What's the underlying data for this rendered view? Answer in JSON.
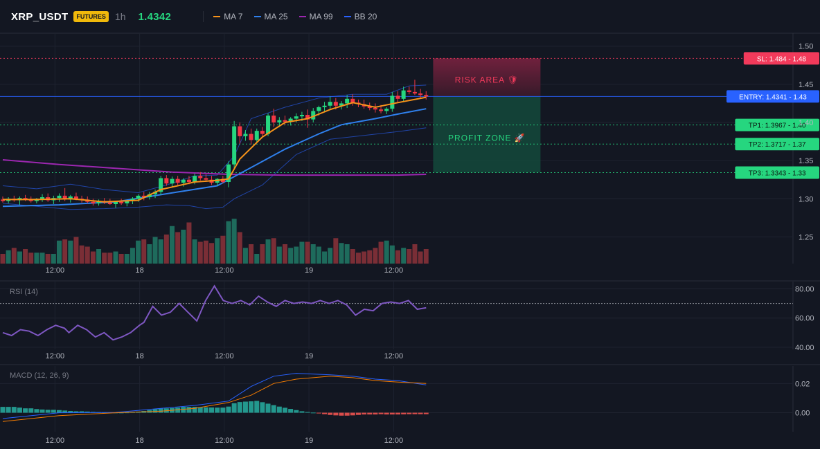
{
  "header": {
    "symbol": "XRP_USDT",
    "badge": "FUTURES",
    "interval": "1h",
    "last_price": "1.4342",
    "indicators": [
      {
        "label": "MA 7",
        "color": "#f7931a"
      },
      {
        "label": "MA 25",
        "color": "#2f80ed"
      },
      {
        "label": "MA 99",
        "color": "#9c27b0"
      },
      {
        "label": "BB 20",
        "color": "#2962ff"
      }
    ]
  },
  "colors": {
    "background": "#131722",
    "up": "#26d67f",
    "down": "#f23645",
    "volume_up": "#1e6b5c",
    "volume_down": "#7a2e36",
    "ma7": "#f7931a",
    "ma25": "#2f80ed",
    "ma99": "#9c27b0",
    "bb": "#2962ff",
    "rsi": "#7e57c2",
    "macd": "#2962ff",
    "signal": "#f57c00",
    "hist_up": "#26a69a",
    "hist_down": "#ef5350",
    "entry": "#2962ff",
    "sl": "#f23a5b",
    "tp": "#26d67f"
  },
  "chart_data": [
    {
      "type": "candlestick",
      "name": "price",
      "x_ticks": [
        "12:00",
        "18",
        "12:00",
        "19",
        "12:00"
      ],
      "x_tick_index": [
        9,
        24,
        39,
        54,
        69
      ],
      "y_ticks": [
        "1.50",
        "1.45",
        "1.40",
        "1.35",
        "1.30",
        "1.25"
      ],
      "y_tick_values": [
        1.5,
        1.45,
        1.4,
        1.35,
        1.3,
        1.25
      ],
      "ylim": [
        1.215,
        1.517
      ],
      "candles": [
        [
          1.299,
          1.303,
          1.295,
          1.297
        ],
        [
          1.297,
          1.302,
          1.294,
          1.3
        ],
        [
          1.3,
          1.304,
          1.296,
          1.298
        ],
        [
          1.298,
          1.303,
          1.292,
          1.301
        ],
        [
          1.301,
          1.305,
          1.297,
          1.299
        ],
        [
          1.299,
          1.303,
          1.295,
          1.297
        ],
        [
          1.297,
          1.301,
          1.294,
          1.3
        ],
        [
          1.3,
          1.306,
          1.296,
          1.302
        ],
        [
          1.302,
          1.307,
          1.296,
          1.298
        ],
        [
          1.298,
          1.304,
          1.293,
          1.301
        ],
        [
          1.301,
          1.307,
          1.296,
          1.304
        ],
        [
          1.304,
          1.314,
          1.297,
          1.299
        ],
        [
          1.299,
          1.305,
          1.295,
          1.303
        ],
        [
          1.303,
          1.308,
          1.298,
          1.3
        ],
        [
          1.3,
          1.304,
          1.295,
          1.299
        ],
        [
          1.299,
          1.303,
          1.294,
          1.296
        ],
        [
          1.296,
          1.3,
          1.291,
          1.294
        ],
        [
          1.294,
          1.299,
          1.291,
          1.297
        ],
        [
          1.297,
          1.301,
          1.293,
          1.295
        ],
        [
          1.295,
          1.3,
          1.292,
          1.293
        ],
        [
          1.293,
          1.297,
          1.288,
          1.296
        ],
        [
          1.296,
          1.3,
          1.292,
          1.294
        ],
        [
          1.294,
          1.298,
          1.29,
          1.297
        ],
        [
          1.297,
          1.302,
          1.293,
          1.3
        ],
        [
          1.3,
          1.306,
          1.296,
          1.304
        ],
        [
          1.304,
          1.309,
          1.298,
          1.302
        ],
        [
          1.302,
          1.309,
          1.299,
          1.306
        ],
        [
          1.306,
          1.312,
          1.301,
          1.309
        ],
        [
          1.309,
          1.33,
          1.305,
          1.327
        ],
        [
          1.327,
          1.331,
          1.317,
          1.32
        ],
        [
          1.32,
          1.329,
          1.316,
          1.326
        ],
        [
          1.326,
          1.33,
          1.318,
          1.321
        ],
        [
          1.321,
          1.327,
          1.316,
          1.325
        ],
        [
          1.325,
          1.33,
          1.319,
          1.322
        ],
        [
          1.322,
          1.333,
          1.319,
          1.33
        ],
        [
          1.33,
          1.335,
          1.324,
          1.327
        ],
        [
          1.327,
          1.332,
          1.322,
          1.325
        ],
        [
          1.325,
          1.33,
          1.318,
          1.321
        ],
        [
          1.321,
          1.327,
          1.317,
          1.326
        ],
        [
          1.326,
          1.33,
          1.32,
          1.322
        ],
        [
          1.322,
          1.349,
          1.315,
          1.345
        ],
        [
          1.345,
          1.402,
          1.34,
          1.395
        ],
        [
          1.395,
          1.4,
          1.372,
          1.382
        ],
        [
          1.382,
          1.39,
          1.376,
          1.385
        ],
        [
          1.385,
          1.392,
          1.371,
          1.377
        ],
        [
          1.377,
          1.392,
          1.374,
          1.389
        ],
        [
          1.389,
          1.394,
          1.382,
          1.385
        ],
        [
          1.385,
          1.412,
          1.382,
          1.409
        ],
        [
          1.409,
          1.418,
          1.394,
          1.4
        ],
        [
          1.4,
          1.407,
          1.394,
          1.403
        ],
        [
          1.403,
          1.409,
          1.397,
          1.401
        ],
        [
          1.401,
          1.407,
          1.396,
          1.405
        ],
        [
          1.405,
          1.412,
          1.4,
          1.408
        ],
        [
          1.408,
          1.414,
          1.402,
          1.41
        ],
        [
          1.41,
          1.417,
          1.393,
          1.404
        ],
        [
          1.404,
          1.419,
          1.4,
          1.415
        ],
        [
          1.415,
          1.422,
          1.409,
          1.42
        ],
        [
          1.42,
          1.427,
          1.414,
          1.422
        ],
        [
          1.422,
          1.434,
          1.418,
          1.427
        ],
        [
          1.427,
          1.432,
          1.417,
          1.422
        ],
        [
          1.422,
          1.428,
          1.417,
          1.425
        ],
        [
          1.425,
          1.436,
          1.419,
          1.431
        ],
        [
          1.431,
          1.437,
          1.422,
          1.426
        ],
        [
          1.426,
          1.43,
          1.42,
          1.424
        ],
        [
          1.424,
          1.43,
          1.418,
          1.421
        ],
        [
          1.421,
          1.426,
          1.416,
          1.419
        ],
        [
          1.419,
          1.425,
          1.413,
          1.417
        ],
        [
          1.417,
          1.423,
          1.412,
          1.415
        ],
        [
          1.415,
          1.42,
          1.411,
          1.418
        ],
        [
          1.418,
          1.44,
          1.414,
          1.435
        ],
        [
          1.435,
          1.441,
          1.426,
          1.431
        ],
        [
          1.431,
          1.447,
          1.427,
          1.442
        ],
        [
          1.442,
          1.447,
          1.437,
          1.44
        ],
        [
          1.44,
          1.456,
          1.436,
          1.438
        ],
        [
          1.438,
          1.444,
          1.432,
          1.436
        ],
        [
          1.436,
          1.441,
          1.43,
          1.434
        ]
      ],
      "volume": [
        8,
        11,
        13,
        10,
        12,
        9,
        9,
        9,
        8,
        8,
        19,
        20,
        19,
        22,
        15,
        14,
        10,
        12,
        9,
        9,
        10,
        8,
        8,
        13,
        19,
        20,
        16,
        22,
        20,
        24,
        31,
        26,
        28,
        34,
        20,
        18,
        19,
        17,
        21,
        23,
        35,
        37,
        26,
        13,
        16,
        8,
        16,
        20,
        21,
        14,
        16,
        13,
        14,
        18,
        18,
        16,
        14,
        10,
        13,
        21,
        17,
        16,
        12,
        9,
        10,
        11,
        13,
        18,
        19,
        15,
        11,
        13,
        12,
        16,
        10,
        12
      ],
      "bb_upper_pts": [
        [
          0,
          1.317
        ],
        [
          6,
          1.313
        ],
        [
          12,
          1.319
        ],
        [
          18,
          1.312
        ],
        [
          24,
          1.308
        ],
        [
          29,
          1.318
        ],
        [
          34,
          1.33
        ],
        [
          38,
          1.331
        ],
        [
          41,
          1.356
        ],
        [
          44,
          1.405
        ],
        [
          50,
          1.42
        ],
        [
          56,
          1.432
        ],
        [
          62,
          1.437
        ],
        [
          68,
          1.437
        ],
        [
          72,
          1.448
        ],
        [
          75,
          1.449
        ]
      ],
      "bb_lower_pts": [
        [
          0,
          1.294
        ],
        [
          6,
          1.29
        ],
        [
          12,
          1.286
        ],
        [
          18,
          1.287
        ],
        [
          24,
          1.289
        ],
        [
          29,
          1.292
        ],
        [
          33,
          1.291
        ],
        [
          36,
          1.287
        ],
        [
          39,
          1.289
        ],
        [
          41,
          1.3
        ],
        [
          46,
          1.318
        ],
        [
          52,
          1.358
        ],
        [
          58,
          1.378
        ],
        [
          64,
          1.383
        ],
        [
          70,
          1.388
        ],
        [
          75,
          1.393
        ]
      ],
      "ma7_pts": [
        [
          0,
          1.299
        ],
        [
          6,
          1.299
        ],
        [
          12,
          1.3
        ],
        [
          18,
          1.296
        ],
        [
          24,
          1.298
        ],
        [
          28,
          1.312
        ],
        [
          34,
          1.322
        ],
        [
          38,
          1.324
        ],
        [
          40,
          1.326
        ],
        [
          42,
          1.352
        ],
        [
          46,
          1.381
        ],
        [
          50,
          1.4
        ],
        [
          54,
          1.405
        ],
        [
          58,
          1.417
        ],
        [
          62,
          1.426
        ],
        [
          66,
          1.42
        ],
        [
          70,
          1.426
        ],
        [
          75,
          1.433
        ]
      ],
      "ma25_pts": [
        [
          0,
          1.29
        ],
        [
          10,
          1.292
        ],
        [
          20,
          1.296
        ],
        [
          26,
          1.303
        ],
        [
          32,
          1.31
        ],
        [
          38,
          1.317
        ],
        [
          44,
          1.341
        ],
        [
          50,
          1.365
        ],
        [
          56,
          1.385
        ],
        [
          60,
          1.397
        ],
        [
          66,
          1.405
        ],
        [
          70,
          1.411
        ],
        [
          75,
          1.418
        ]
      ],
      "ma99_pts": [
        [
          0,
          1.351
        ],
        [
          10,
          1.345
        ],
        [
          20,
          1.34
        ],
        [
          30,
          1.335
        ],
        [
          40,
          1.332
        ],
        [
          50,
          1.331
        ],
        [
          60,
          1.331
        ],
        [
          70,
          1.331
        ],
        [
          75,
          1.332
        ]
      ],
      "levels": [
        {
          "label": "SL: 1.484 - 1.48",
          "value": 1.484,
          "kind": "sl"
        },
        {
          "label": "ENTRY: 1.4341 - 1.43",
          "value": 1.4341,
          "kind": "entry"
        },
        {
          "label": "TP1: 1.3967 - 1.40",
          "value": 1.3967,
          "kind": "tp"
        },
        {
          "label": "TP2: 1.3717 - 1.37",
          "value": 1.3717,
          "kind": "tp"
        },
        {
          "label": "TP3: 1.3343 - 1.33",
          "value": 1.3343,
          "kind": "tp"
        }
      ],
      "zones": [
        {
          "label": "RISK AREA 🛡",
          "from": 1.4341,
          "to": 1.484,
          "kind": "risk"
        },
        {
          "label": "PROFIT ZONE 🚀",
          "from": 1.3343,
          "to": 1.4341,
          "kind": "profit"
        }
      ]
    },
    {
      "type": "line",
      "name": "rsi",
      "title": "RSI (14)",
      "y_ticks": [
        "80.00",
        "60.00",
        "40.00"
      ],
      "y_tick_values": [
        80,
        60,
        40
      ],
      "ylim": [
        38.5,
        85
      ],
      "ref_line": 70,
      "x_ticks": [
        "12:00",
        "18",
        "12:00",
        "19",
        "12:00"
      ],
      "values_pts": [
        [
          0,
          50
        ],
        [
          2,
          48
        ],
        [
          4,
          52
        ],
        [
          6,
          51
        ],
        [
          8,
          48
        ],
        [
          10,
          52
        ],
        [
          12,
          55
        ],
        [
          14,
          53
        ],
        [
          15,
          50
        ],
        [
          17,
          55
        ],
        [
          19,
          52
        ],
        [
          21,
          47
        ],
        [
          23,
          50
        ],
        [
          25,
          45
        ],
        [
          27,
          47
        ],
        [
          29,
          50
        ],
        [
          31,
          55
        ],
        [
          32,
          57
        ],
        [
          34,
          68
        ],
        [
          36,
          62
        ],
        [
          38,
          64
        ],
        [
          40,
          70
        ],
        [
          42,
          64
        ],
        [
          44,
          58
        ],
        [
          46,
          72
        ],
        [
          48,
          82
        ],
        [
          50,
          72
        ],
        [
          52,
          70
        ],
        [
          54,
          72
        ],
        [
          56,
          69
        ],
        [
          58,
          75
        ],
        [
          60,
          71
        ],
        [
          62,
          68
        ],
        [
          64,
          72
        ],
        [
          66,
          70
        ],
        [
          68,
          71
        ],
        [
          70,
          70
        ],
        [
          72,
          72
        ],
        [
          74,
          70
        ],
        [
          76,
          72
        ],
        [
          78,
          69
        ],
        [
          80,
          62
        ],
        [
          82,
          66
        ],
        [
          84,
          65
        ],
        [
          86,
          70
        ],
        [
          88,
          71
        ],
        [
          90,
          70
        ],
        [
          92,
          72
        ],
        [
          94,
          66
        ],
        [
          96,
          67
        ]
      ]
    },
    {
      "type": "bar+line",
      "name": "macd",
      "title": "MACD (12, 26, 9)",
      "y_ticks": [
        "0.02",
        "0.00"
      ],
      "y_tick_values": [
        0.02,
        0.0
      ],
      "ylim": [
        -0.013,
        0.032
      ],
      "x_ticks": [
        "12:00",
        "18",
        "12:00",
        "19",
        "12:00"
      ],
      "histogram": [
        0.004,
        0.004,
        0.004,
        0.0035,
        0.003,
        0.003,
        0.0025,
        0.0022,
        0.002,
        0.002,
        0.0018,
        0.0015,
        0.0012,
        0.001,
        0.001,
        0.0008,
        0.0006,
        0.0004,
        0.0003,
        0.0002,
        0.0001,
        0.0001,
        0.0002,
        0.0004,
        0.0008,
        0.0012,
        0.0018,
        0.0025,
        0.003,
        0.003,
        0.0032,
        0.0035,
        0.004,
        0.004,
        0.004,
        0.0038,
        0.0037,
        0.0036,
        0.0035,
        0.0035,
        0.0042,
        0.0065,
        0.0073,
        0.0076,
        0.0078,
        0.0081,
        0.0072,
        0.0062,
        0.0052,
        0.0042,
        0.0034,
        0.0026,
        0.0018,
        0.001,
        0.0005,
        0.0001,
        -0.0005,
        -0.001,
        -0.0015,
        -0.0018,
        -0.002,
        -0.002,
        -0.0018,
        -0.0015,
        -0.0012,
        -0.0012,
        -0.0012,
        -0.001,
        -0.0012,
        -0.0012,
        -0.0012,
        -0.0011,
        -0.001,
        -0.001,
        -0.001,
        -0.001
      ],
      "macd_pts": [
        [
          0,
          -0.004
        ],
        [
          10,
          0.0
        ],
        [
          20,
          0.0002
        ],
        [
          28,
          0.003
        ],
        [
          34,
          0.005
        ],
        [
          40,
          0.008
        ],
        [
          44,
          0.018
        ],
        [
          48,
          0.025
        ],
        [
          52,
          0.027
        ],
        [
          58,
          0.026
        ],
        [
          62,
          0.025
        ],
        [
          66,
          0.023
        ],
        [
          70,
          0.022
        ],
        [
          75,
          0.019
        ]
      ],
      "signal_pts": [
        [
          0,
          -0.006
        ],
        [
          10,
          -0.002
        ],
        [
          20,
          0.0
        ],
        [
          28,
          0.001
        ],
        [
          34,
          0.003
        ],
        [
          40,
          0.007
        ],
        [
          44,
          0.012
        ],
        [
          48,
          0.02
        ],
        [
          52,
          0.023
        ],
        [
          58,
          0.025
        ],
        [
          62,
          0.024
        ],
        [
          66,
          0.022
        ],
        [
          70,
          0.021
        ],
        [
          75,
          0.02
        ]
      ]
    }
  ]
}
